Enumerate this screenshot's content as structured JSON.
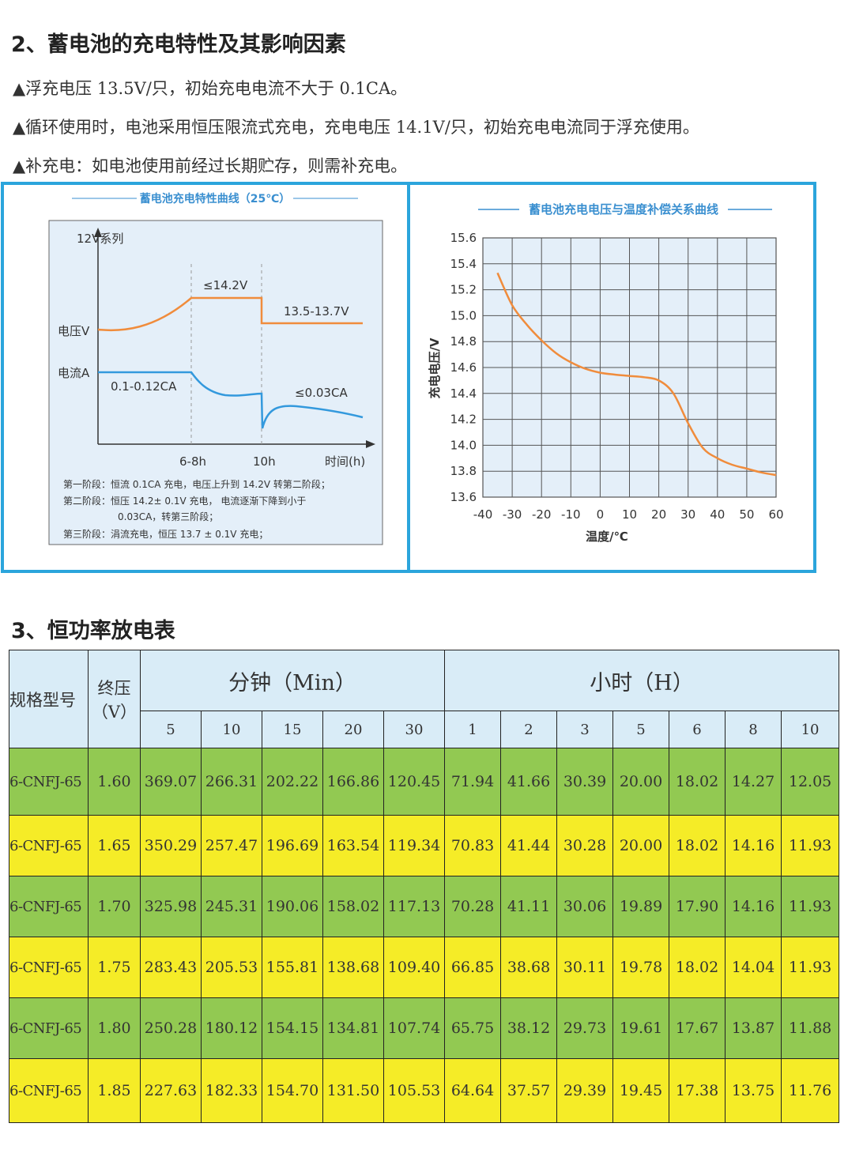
{
  "section2": {
    "heading": "2、蓄电池的充电特性及其影响因素",
    "bullets": [
      "▲浮充电压 13.5V/只，初始充电电流不大于 0.1CA。",
      "▲循环使用时，电池采用恒压限流式充电，充电电压 14.1V/只，初始充电电流同于浮充使用。",
      "▲补充电：如电池使用前经过长期贮存，则需补充电。"
    ]
  },
  "chart_left": {
    "title": "蓄电池充电特性曲线（25℃）",
    "series_label": "12V系列",
    "voltage_label": "电压V",
    "current_label": "电流A",
    "voltage_max_label": "≤14.2V",
    "voltage_float_label": "13.5-13.7V",
    "current_start_label": "0.1-0.12CA",
    "current_end_label": "≤0.03CA",
    "x_ticks": [
      "6-8h",
      "10h",
      "时间(h)"
    ],
    "notes": [
      "第一阶段：恒流 0.1CA 充电，电压上升到 14.2V 转第二阶段；",
      "第二阶段：恒压 14.2± 0.1V 充电，   电流逐渐下降到小于",
      "0.03CA，转第三阶段；",
      "第三阶段：涓流充电，恒压 13.7 ± 0.1V 充电；"
    ],
    "colors": {
      "voltage": "#f08c3c",
      "current": "#3399dd"
    }
  },
  "chart_data": {
    "type": "line",
    "title": "蓄电池充电电压与温度补偿关系曲线",
    "xlabel": "温度/℃",
    "ylabel": "充电电压/V",
    "xlim": [
      -40,
      60
    ],
    "ylim": [
      13.6,
      15.6
    ],
    "x_ticks": [
      -40,
      -30,
      -20,
      -10,
      0,
      10,
      20,
      30,
      40,
      50,
      60
    ],
    "y_ticks": [
      "15.6",
      "15.4",
      "15.2",
      "15.0",
      "14.8",
      "14.6",
      "14.4",
      "14.2",
      "14.0",
      "13.8",
      "13.6"
    ],
    "grid": true,
    "x": [
      -35,
      -30,
      -25,
      -20,
      -15,
      -10,
      -5,
      0,
      5,
      10,
      15,
      20,
      25,
      30,
      35,
      40,
      45,
      50,
      55,
      60
    ],
    "y": [
      15.33,
      15.08,
      14.93,
      14.81,
      14.71,
      14.64,
      14.59,
      14.56,
      14.545,
      14.535,
      14.525,
      14.5,
      14.4,
      14.17,
      13.98,
      13.9,
      13.85,
      13.82,
      13.79,
      13.77
    ],
    "color": "#f08c3c"
  },
  "section3": {
    "heading": "3、恒功率放电表"
  },
  "table": {
    "col_model": "规格型号",
    "col_voltage": "终压（V）",
    "group_min": "分钟（Min）",
    "group_hour": "小时（H）",
    "sub_headers": [
      "5",
      "10",
      "15",
      "20",
      "30",
      "1",
      "2",
      "3",
      "5",
      "6",
      "8",
      "10"
    ],
    "rows": [
      {
        "model": "6-CNFJ-65",
        "v": "1.60",
        "vals": [
          "369.07",
          "266.31",
          "202.22",
          "166.86",
          "120.45",
          "71.94",
          "41.66",
          "30.39",
          "20.00",
          "18.02",
          "14.27",
          "12.05"
        ]
      },
      {
        "model": "6-CNFJ-65",
        "v": "1.65",
        "vals": [
          "350.29",
          "257.47",
          "196.69",
          "163.54",
          "119.34",
          "70.83",
          "41.44",
          "30.28",
          "20.00",
          "18.02",
          "14.16",
          "11.93"
        ]
      },
      {
        "model": "6-CNFJ-65",
        "v": "1.70",
        "vals": [
          "325.98",
          "245.31",
          "190.06",
          "158.02",
          "117.13",
          "70.28",
          "41.11",
          "30.06",
          "19.89",
          "17.90",
          "14.16",
          "11.93"
        ]
      },
      {
        "model": "6-CNFJ-65",
        "v": "1.75",
        "vals": [
          "283.43",
          "205.53",
          "155.81",
          "138.68",
          "109.40",
          "66.85",
          "38.68",
          "30.11",
          "19.78",
          "18.02",
          "14.04",
          "11.93"
        ]
      },
      {
        "model": "6-CNFJ-65",
        "v": "1.80",
        "vals": [
          "250.28",
          "180.12",
          "154.15",
          "134.81",
          "107.74",
          "65.75",
          "38.12",
          "29.73",
          "19.61",
          "17.67",
          "13.87",
          "11.88"
        ]
      },
      {
        "model": "6-CNFJ-65",
        "v": "1.85",
        "vals": [
          "227.63",
          "182.33",
          "154.70",
          "131.50",
          "105.53",
          "64.64",
          "37.57",
          "29.39",
          "19.45",
          "17.38",
          "13.75",
          "11.76"
        ]
      }
    ],
    "colors": {
      "green": "#92c952",
      "yellow": "#f5ec27",
      "header": "#d9ecf7"
    }
  }
}
